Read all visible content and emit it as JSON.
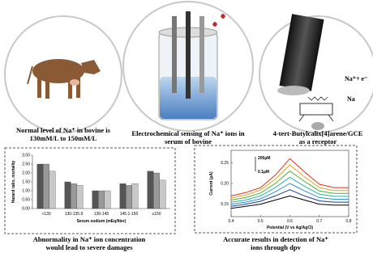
{
  "captions": {
    "bovine": [
      "Normal level of Na⁺ in bovine is",
      "130mM/L to 150mM/L"
    ],
    "sensing": [
      "Electrochemical sensing of Na⁺ ions in",
      "serum of bovine"
    ],
    "receptor": [
      "4-tert-Butylcalix[4]arene/GCE",
      "as a receptor"
    ],
    "abnormality": [
      "Abnormality in Na⁺ ion concentration",
      "would lead to severe damages"
    ],
    "accuracy": [
      "Accurate results in detection of Na⁺",
      "ions through dpv"
    ]
  },
  "receptor_labels": {
    "reaction": "Na⁺+ e⁻",
    "ion": "Na"
  },
  "bar_chart": {
    "type": "bar",
    "ylabel": "Hazard ratio, mortality",
    "xlabel": "Serum sodium (mEq/liter)",
    "categories": [
      "<130",
      "130-135.9",
      "136-145",
      "145.1-150",
      "≥150"
    ],
    "series": [
      {
        "color": "#555555",
        "values": [
          2.5,
          1.5,
          1.0,
          1.4,
          2.1
        ]
      },
      {
        "color": "#999999",
        "values": [
          2.5,
          1.4,
          1.0,
          1.3,
          2.0
        ]
      },
      {
        "color": "#c8c8c8",
        "values": [
          2.1,
          1.3,
          1.0,
          1.4,
          1.6
        ]
      }
    ],
    "ylim": [
      0,
      3
    ],
    "yticks": [
      {
        "value": 0,
        "label": "0.00"
      },
      {
        "value": 0.5,
        "label": "0.50"
      },
      {
        "value": 1,
        "label": "1.00"
      },
      {
        "value": 1.5,
        "label": "1.50"
      },
      {
        "value": 2,
        "label": "2.00"
      },
      {
        "value": 2.5,
        "label": "2.50"
      },
      {
        "value": 3,
        "label": "3.00"
      }
    ]
  },
  "dpv_chart": {
    "type": "line",
    "ylabel": "Current (µA)",
    "xlabel": "Potential (V vs Ag/AgCl)",
    "annotations": [
      "200µM",
      "0.1µM"
    ],
    "x": [
      0.4,
      0.45,
      0.5,
      0.55,
      0.6,
      0.65,
      0.7,
      0.75,
      0.8
    ],
    "series": [
      {
        "color": "#000000",
        "values": [
          0.14,
          0.145,
          0.15,
          0.16,
          0.17,
          0.16,
          0.15,
          0.148,
          0.148
        ]
      },
      {
        "color": "#1f3c99",
        "values": [
          0.145,
          0.15,
          0.157,
          0.17,
          0.185,
          0.17,
          0.158,
          0.155,
          0.155
        ]
      },
      {
        "color": "#2f8fd8",
        "values": [
          0.15,
          0.155,
          0.163,
          0.18,
          0.2,
          0.182,
          0.166,
          0.162,
          0.162
        ]
      },
      {
        "color": "#22b3a8",
        "values": [
          0.155,
          0.16,
          0.17,
          0.19,
          0.215,
          0.193,
          0.174,
          0.169,
          0.169
        ]
      },
      {
        "color": "#4cae3a",
        "values": [
          0.16,
          0.166,
          0.177,
          0.2,
          0.23,
          0.205,
          0.182,
          0.176,
          0.176
        ]
      },
      {
        "color": "#e8a317",
        "values": [
          0.165,
          0.172,
          0.184,
          0.21,
          0.245,
          0.216,
          0.19,
          0.183,
          0.183
        ]
      },
      {
        "color": "#e03020",
        "values": [
          0.17,
          0.178,
          0.19,
          0.22,
          0.26,
          0.228,
          0.198,
          0.19,
          0.19
        ]
      }
    ],
    "xlim": [
      0.4,
      0.8
    ],
    "xticks": [
      0.4,
      0.5,
      0.6,
      0.7,
      0.8
    ],
    "ylim": [
      0.12,
      0.28
    ],
    "yticks": [
      0.15,
      {
        "value": 0.2,
        "label": "0.20"
      },
      0.25
    ]
  }
}
